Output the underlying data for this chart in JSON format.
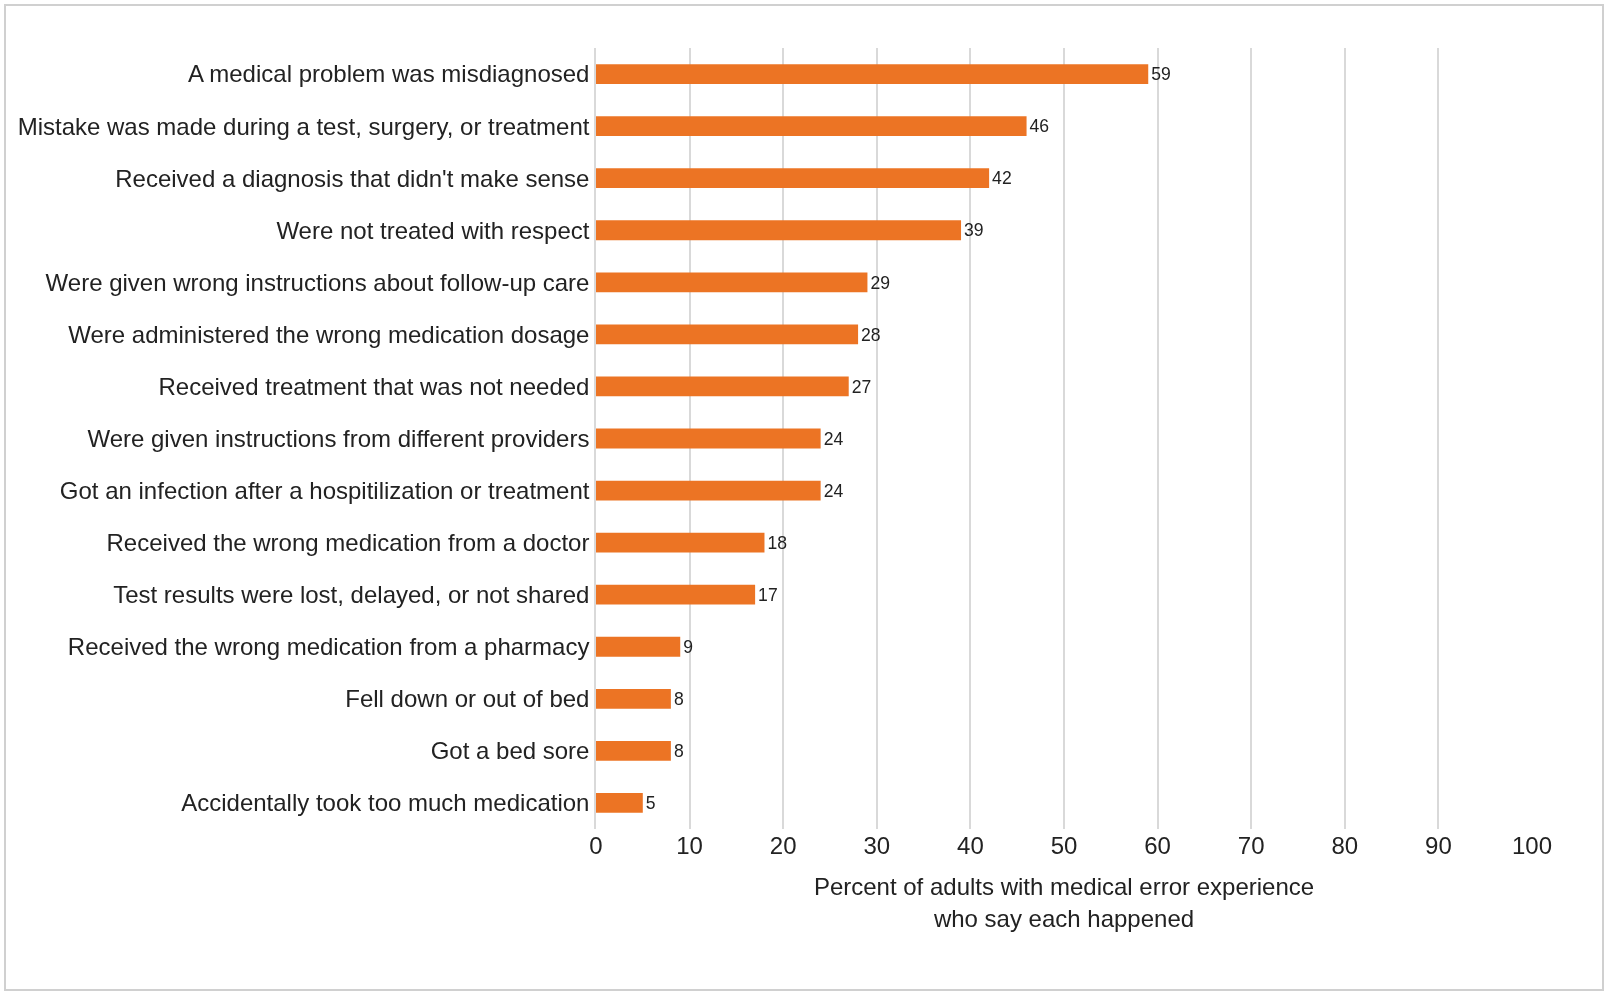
{
  "chart_data": {
    "type": "bar",
    "orientation": "horizontal",
    "categories": [
      "A medical problem was misdiagnosed",
      "Mistake was made during a test, surgery, or treatment",
      "Received a diagnosis that didn't make sense",
      "Were not treated with respect",
      "Were given wrong instructions about follow-up care",
      "Were administered the wrong medication dosage",
      "Received treatment that was not needed",
      "Were given instructions from different providers",
      "Got an infection after a hospitilization or treatment",
      "Received the wrong medication from a doctor",
      "Test results were lost, delayed, or not shared",
      "Received the wrong medication from a pharmacy",
      "Fell down or out of bed",
      "Got a bed sore",
      "Accidentally took too much medication"
    ],
    "values": [
      59,
      46,
      42,
      39,
      29,
      28,
      27,
      24,
      24,
      18,
      17,
      9,
      8,
      8,
      5
    ],
    "color": "#ec7424",
    "data_labels": true,
    "xlabel": "Percent of adults with medical error experience\nwho say each happened",
    "xlim": [
      0,
      100
    ],
    "xticks": [
      0,
      10,
      20,
      30,
      40,
      50,
      60,
      70,
      80,
      90,
      100
    ],
    "grid": "x",
    "legend": false
  }
}
